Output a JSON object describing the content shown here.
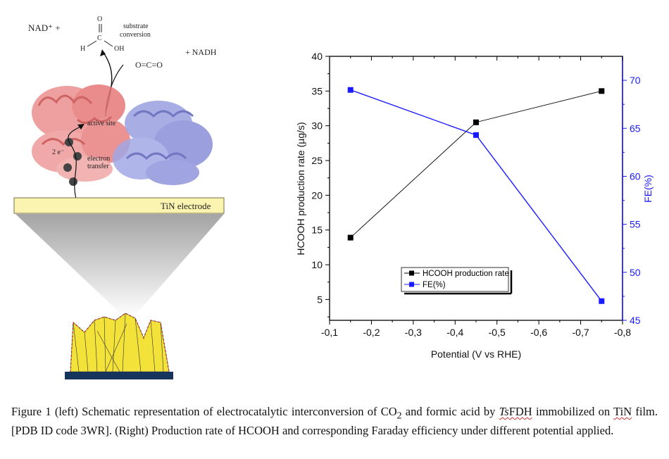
{
  "schematic": {
    "nad_plus": "NAD⁺ +",
    "formic_o": "O",
    "formic_c": "C",
    "formic_h": "H",
    "formic_oh": "OH",
    "substrate_conversion_1": "substrate",
    "substrate_conversion_2": "conversion",
    "co2": "O=C=O",
    "nadh": "+ NADH",
    "active_site": "active site",
    "electrons": "2 e⁻",
    "electron_transfer_1": "electron",
    "electron_transfer_2": "transfer",
    "electrode_label": "TiN electrode",
    "colors": {
      "enzyme_red": "#e88080",
      "enzyme_blue": "#8a8fd8",
      "electrode": "#fbf3b0",
      "film_yellow": "#f2e23a",
      "film_base": "#17355c",
      "dots": "#d12020"
    }
  },
  "chart_data": {
    "type": "line",
    "x": [
      -0.15,
      -0.45,
      -0.75
    ],
    "xlabel": "Potential (V vs RHE)",
    "xlim": [
      -0.1,
      -0.8
    ],
    "xticks": [
      "-0,1",
      "-0,2",
      "-0,3",
      "-0,4",
      "-0,5",
      "-0,6",
      "-0,7",
      "-0,8"
    ],
    "ylabel": "HCOOH production rate (µg/s)",
    "ylim": [
      2,
      40
    ],
    "yticks": [
      "5",
      "10",
      "15",
      "20",
      "25",
      "30",
      "35",
      "40"
    ],
    "y2label": "FE(%)",
    "y2lim": [
      45,
      72.5
    ],
    "y2ticks": [
      "45",
      "50",
      "55",
      "60",
      "65",
      "70"
    ],
    "series": [
      {
        "name": "HCOOH production rate",
        "axis": "left",
        "color": "#000000",
        "values": [
          13.9,
          30.5,
          35.0
        ]
      },
      {
        "name": "FE(%)",
        "axis": "right",
        "color": "#1a1aff",
        "values": [
          69.0,
          64.3,
          47.0
        ]
      }
    ],
    "legend_position": "lower-right",
    "grid": false
  },
  "caption": {
    "part1": "Figure 1 (left) Schematic representation of electrocatalytic interconversion of CO",
    "sub2": "2",
    "part2": " and formic acid by ",
    "ts": "Ts",
    "fdh": "FDH",
    "part3": " immobilized on ",
    "tin": "TiN",
    "part4": " film. [PDB ID code 3WR]. (Right) Production rate of HCOOH and corresponding Faraday efficiency under different potential applied."
  }
}
